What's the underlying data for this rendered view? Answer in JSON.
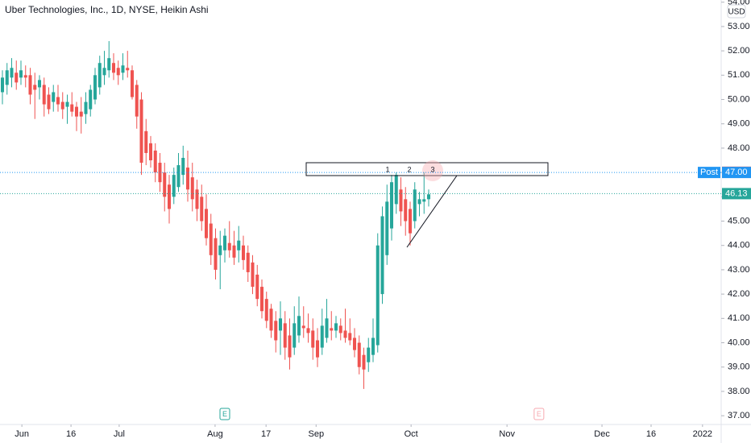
{
  "chart_data": {
    "type": "candlestick",
    "title": "Uber Technologies, Inc., 1D, NYSE, Heikin Ashi",
    "currency": "USD",
    "up_color": "#26a69a",
    "down_color": "#ef5350",
    "open": [
      50.3,
      50.6,
      50.9,
      51.1,
      50.9,
      51.0,
      51.0,
      50.6,
      50.5,
      50.6,
      50.2,
      49.9,
      50.1,
      49.9,
      49.7,
      49.8,
      49.7,
      49.5,
      49.4,
      49.6,
      50.0,
      50.5,
      51.0,
      51.2,
      51.5,
      51.3,
      51.1,
      51.3,
      51.2,
      50.6,
      50.0,
      48.7,
      48.2,
      47.9,
      47.4,
      47.0,
      46.5,
      46.0,
      46.4,
      46.9,
      47.2,
      46.8,
      46.3,
      46.0,
      45.5,
      44.9,
      44.3,
      43.6,
      43.8,
      44.1,
      44.0,
      43.8,
      44.0,
      43.7,
      43.3,
      42.8,
      42.3,
      41.8,
      41.4,
      40.9,
      40.5,
      40.8,
      40.3,
      39.8,
      40.3,
      40.7,
      40.6,
      40.5,
      40.1,
      39.8,
      40.2,
      40.6,
      40.5,
      40.7,
      40.5,
      40.4,
      40.2,
      40.0,
      39.5,
      39.2,
      39.5,
      39.9,
      42.0,
      43.6,
      44.7,
      45.7,
      46.3,
      45.9,
      45.5,
      45.0,
      45.7,
      45.8,
      45.9
    ],
    "high": [
      51.2,
      51.5,
      51.7,
      51.6,
      51.6,
      51.4,
      51.3,
      51.1,
      51.0,
      50.9,
      50.5,
      50.6,
      50.6,
      50.3,
      50.2,
      50.3,
      49.9,
      50.1,
      50.3,
      50.6,
      51.3,
      51.8,
      52.0,
      52.4,
      51.9,
      51.6,
      51.9,
      52.0,
      51.4,
      50.8,
      50.3,
      49.2,
      48.5,
      48.2,
      47.8,
      47.4,
      46.9,
      47.2,
      47.8,
      48.1,
      47.9,
      47.4,
      46.7,
      46.5,
      46.1,
      45.3,
      44.7,
      44.6,
      44.7,
      45.0,
      44.6,
      44.8,
      44.4,
      44.0,
      43.6,
      43.2,
      42.6,
      42.1,
      41.6,
      41.3,
      41.7,
      41.3,
      41.0,
      41.5,
      41.9,
      41.5,
      41.2,
      41.0,
      40.6,
      41.4,
      41.8,
      41.3,
      41.1,
      41.0,
      41.4,
      41.0,
      40.6,
      40.3,
      39.8,
      40.2,
      41.0,
      44.5,
      45.6,
      46.5,
      46.9,
      47.0,
      46.8,
      46.4,
      45.8,
      46.6,
      46.2,
      47.0,
      46.3
    ],
    "low": [
      49.8,
      50.2,
      50.5,
      50.4,
      50.6,
      50.5,
      49.8,
      49.2,
      50.0,
      49.3,
      49.4,
      49.5,
      49.5,
      49.2,
      49.0,
      49.3,
      48.7,
      48.6,
      49.0,
      49.3,
      49.8,
      50.2,
      50.6,
      50.9,
      50.8,
      50.6,
      50.8,
      50.9,
      50.0,
      48.8,
      46.9,
      47.3,
      47.2,
      46.6,
      46.2,
      45.4,
      44.9,
      45.7,
      46.2,
      46.5,
      45.8,
      45.4,
      45.0,
      44.6,
      44.0,
      43.2,
      42.6,
      42.2,
      43.3,
      43.5,
      43.2,
      43.3,
      43.0,
      42.5,
      42.0,
      41.5,
      41.0,
      40.6,
      40.2,
      39.6,
      39.5,
      39.3,
      38.9,
      39.5,
      40.0,
      40.2,
      40.0,
      39.3,
      39.0,
      39.5,
      40.0,
      40.1,
      40.2,
      40.1,
      40.0,
      39.9,
      39.4,
      38.7,
      38.1,
      38.8,
      39.2,
      39.6,
      41.6,
      43.2,
      44.2,
      45.3,
      44.8,
      44.4,
      44.0,
      44.7,
      45.2,
      45.3,
      45.6
    ],
    "close": [
      50.9,
      51.2,
      51.3,
      50.7,
      51.2,
      50.9,
      50.2,
      50.4,
      50.8,
      49.8,
      49.6,
      50.3,
      49.8,
      49.6,
      49.9,
      49.5,
      49.3,
      49.3,
      49.9,
      50.4,
      51.0,
      51.5,
      51.3,
      51.7,
      51.1,
      51.0,
      51.4,
      51.2,
      50.1,
      49.3,
      47.4,
      47.8,
      47.5,
      47.0,
      46.6,
      46.0,
      45.5,
      46.9,
      47.3,
      47.6,
      46.3,
      45.9,
      45.5,
      45.0,
      44.3,
      43.6,
      43.0,
      44.0,
      44.4,
      43.8,
      43.5,
      44.2,
      43.4,
      42.9,
      42.3,
      41.8,
      41.3,
      40.9,
      40.5,
      40.1,
      41.0,
      39.8,
      39.4,
      40.8,
      41.1,
      40.6,
      40.4,
      39.8,
      39.4,
      40.7,
      41.0,
      40.5,
      40.8,
      40.4,
      40.2,
      40.1,
      39.7,
      39.0,
      38.9,
      39.8,
      40.2,
      44.0,
      45.2,
      45.8,
      46.6,
      46.9,
      45.4,
      45.0,
      44.5,
      46.3,
      45.9,
      45.9,
      46.1
    ],
    "xlim": [
      0,
      155
    ],
    "xticks": [
      {
        "value": 4.2,
        "label": "Jun"
      },
      {
        "value": 14.8,
        "label": "16"
      },
      {
        "value": 25.2,
        "label": "Jul"
      },
      {
        "value": 45.9,
        "label": "Aug"
      },
      {
        "value": 56.9,
        "label": "17"
      },
      {
        "value": 67.7,
        "label": "Sep"
      },
      {
        "value": 88.2,
        "label": "Oct"
      },
      {
        "value": 108.9,
        "label": "Nov"
      },
      {
        "value": 129.4,
        "label": "Dec"
      },
      {
        "value": 140,
        "label": "16"
      },
      {
        "value": 151.1,
        "label": "2022"
      }
    ],
    "ylim": [
      36.64,
      54.09
    ],
    "yticks": [
      {
        "value": 37,
        "label": "37.00"
      },
      {
        "value": 38,
        "label": "38.00"
      },
      {
        "value": 39,
        "label": "39.00"
      },
      {
        "value": 40,
        "label": "40.00"
      },
      {
        "value": 41,
        "label": "41.00"
      },
      {
        "value": 42,
        "label": "42.00"
      },
      {
        "value": 43,
        "label": "43.00"
      },
      {
        "value": 44,
        "label": "44.00"
      },
      {
        "value": 45,
        "label": "45.00"
      },
      {
        "value": 46,
        "label": "46.00"
      },
      {
        "value": 47,
        "label": "47.00"
      },
      {
        "value": 48,
        "label": "48.00"
      },
      {
        "value": 49,
        "label": "49.00"
      },
      {
        "value": 50,
        "label": "50.00"
      },
      {
        "value": 51,
        "label": "51.00"
      },
      {
        "value": 52,
        "label": "52.00"
      },
      {
        "value": 53,
        "label": "53.00"
      },
      {
        "value": 54,
        "label": "54.00"
      }
    ],
    "grid": false,
    "price_labels": [
      {
        "value": 47.01,
        "label": "47.01",
        "color": "#ef5350",
        "line": false
      },
      {
        "name": "Post",
        "value": 47,
        "label": "47.00",
        "color": "#2196f3",
        "line": true
      },
      {
        "value": 46.13,
        "label": "46.13",
        "color": "#26a69a",
        "line": true
      }
    ],
    "events": [
      {
        "label": "E",
        "x": 48,
        "color": "#26a69a"
      },
      {
        "label": "E",
        "x": 115.8,
        "color": "#f7a9b0"
      }
    ],
    "pattern_labels": [
      "1",
      "2",
      "3"
    ]
  }
}
